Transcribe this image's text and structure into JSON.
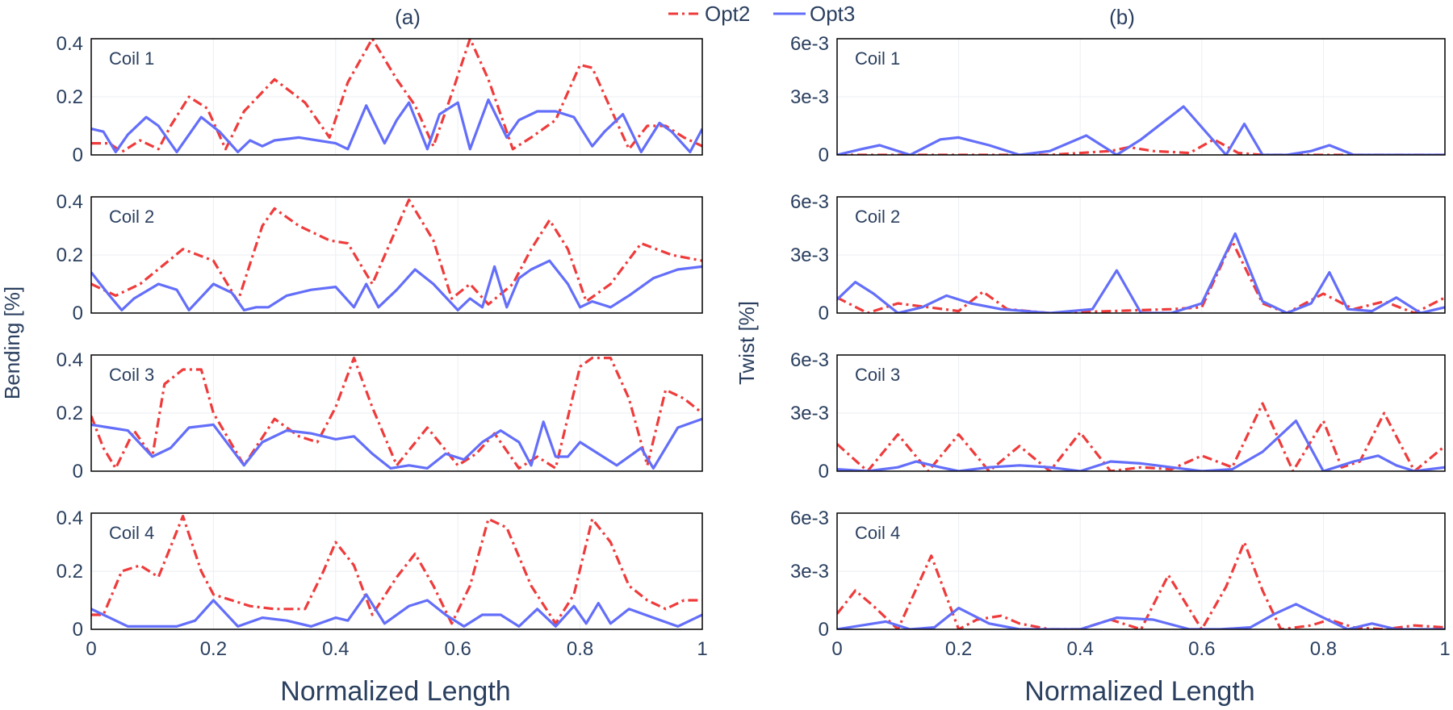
{
  "figure": {
    "legend": {
      "placement": "top-center",
      "items": [
        {
          "name": "Opt2",
          "color": "#ef3b3b",
          "dash": "dash-dot"
        },
        {
          "name": "Opt3",
          "color": "#636efa",
          "dash": "solid"
        }
      ]
    },
    "columns": [
      {
        "panel_label": "(a)",
        "ylabel": "Bending [%]",
        "xlabel": "Normalized Length"
      },
      {
        "panel_label": "(b)",
        "ylabel": "Twist [%]",
        "xlabel": "Normalized Length"
      }
    ],
    "x_ticks": [
      "0",
      "0.2",
      "0.4",
      "0.6",
      "0.8",
      "1"
    ],
    "bending_y_ticks": [
      "0",
      "0.2",
      "0.4"
    ],
    "twist_y_ticks": [
      "0",
      "3e-3",
      "6e-3"
    ]
  },
  "chart_data": [
    {
      "type": "line",
      "title": "Coil 1",
      "column": "Bending",
      "xlim": [
        0,
        1
      ],
      "ylim": [
        0,
        0.4
      ],
      "grid": true,
      "series": [
        {
          "name": "Opt2",
          "x": [
            0,
            0.03,
            0.05,
            0.08,
            0.11,
            0.13,
            0.16,
            0.19,
            0.22,
            0.25,
            0.3,
            0.35,
            0.39,
            0.42,
            0.46,
            0.5,
            0.53,
            0.56,
            0.59,
            0.62,
            0.65,
            0.69,
            0.72,
            0.76,
            0.8,
            0.82,
            0.85,
            0.88,
            0.91,
            0.94,
            0.97,
            1
          ],
          "y": [
            0.04,
            0.04,
            0.01,
            0.05,
            0.02,
            0.1,
            0.2,
            0.16,
            0.02,
            0.15,
            0.26,
            0.18,
            0.06,
            0.25,
            0.4,
            0.26,
            0.17,
            0.03,
            0.21,
            0.4,
            0.26,
            0.02,
            0.06,
            0.12,
            0.31,
            0.3,
            0.16,
            0.02,
            0.1,
            0.1,
            0.06,
            0.03
          ]
        },
        {
          "name": "Opt3",
          "x": [
            0,
            0.02,
            0.04,
            0.06,
            0.09,
            0.11,
            0.14,
            0.18,
            0.21,
            0.24,
            0.26,
            0.28,
            0.3,
            0.34,
            0.4,
            0.42,
            0.45,
            0.48,
            0.5,
            0.52,
            0.55,
            0.57,
            0.6,
            0.62,
            0.65,
            0.68,
            0.7,
            0.73,
            0.76,
            0.79,
            0.82,
            0.84,
            0.87,
            0.9,
            0.93,
            0.95,
            0.98,
            1
          ],
          "y": [
            0.09,
            0.08,
            0.01,
            0.07,
            0.13,
            0.1,
            0.01,
            0.13,
            0.08,
            0.01,
            0.05,
            0.03,
            0.05,
            0.06,
            0.04,
            0.02,
            0.17,
            0.04,
            0.12,
            0.18,
            0.02,
            0.14,
            0.18,
            0.02,
            0.19,
            0.06,
            0.12,
            0.15,
            0.15,
            0.13,
            0.03,
            0.08,
            0.14,
            0.01,
            0.11,
            0.08,
            0.01,
            0.09
          ]
        }
      ]
    },
    {
      "type": "line",
      "title": "Coil 2",
      "column": "Bending",
      "xlim": [
        0,
        1
      ],
      "ylim": [
        0,
        0.4
      ],
      "grid": true,
      "series": [
        {
          "name": "Opt2",
          "x": [
            0,
            0.04,
            0.08,
            0.15,
            0.2,
            0.24,
            0.28,
            0.3,
            0.34,
            0.39,
            0.42,
            0.46,
            0.52,
            0.56,
            0.59,
            0.62,
            0.65,
            0.69,
            0.72,
            0.75,
            0.78,
            0.81,
            0.85,
            0.9,
            0.95,
            1
          ],
          "y": [
            0.1,
            0.06,
            0.1,
            0.22,
            0.18,
            0.04,
            0.3,
            0.36,
            0.3,
            0.25,
            0.24,
            0.1,
            0.39,
            0.25,
            0.05,
            0.1,
            0.03,
            0.1,
            0.22,
            0.32,
            0.22,
            0.04,
            0.1,
            0.24,
            0.2,
            0.18
          ]
        },
        {
          "name": "Opt3",
          "x": [
            0,
            0.03,
            0.05,
            0.07,
            0.11,
            0.14,
            0.16,
            0.2,
            0.23,
            0.25,
            0.27,
            0.29,
            0.32,
            0.36,
            0.4,
            0.43,
            0.45,
            0.47,
            0.5,
            0.53,
            0.56,
            0.6,
            0.62,
            0.64,
            0.66,
            0.68,
            0.7,
            0.72,
            0.75,
            0.78,
            0.8,
            0.82,
            0.85,
            0.88,
            0.92,
            0.96,
            1
          ],
          "y": [
            0.14,
            0.06,
            0.01,
            0.05,
            0.1,
            0.08,
            0.01,
            0.1,
            0.07,
            0.01,
            0.02,
            0.02,
            0.06,
            0.08,
            0.09,
            0.02,
            0.1,
            0.02,
            0.08,
            0.15,
            0.1,
            0.01,
            0.05,
            0.02,
            0.16,
            0.02,
            0.12,
            0.15,
            0.18,
            0.1,
            0.02,
            0.04,
            0.02,
            0.06,
            0.12,
            0.15,
            0.16
          ]
        }
      ]
    },
    {
      "type": "line",
      "title": "Coil 3",
      "column": "Bending",
      "xlim": [
        0,
        1
      ],
      "ylim": [
        0,
        0.4
      ],
      "grid": true,
      "series": [
        {
          "name": "Opt2",
          "x": [
            0,
            0.02,
            0.04,
            0.07,
            0.1,
            0.12,
            0.15,
            0.18,
            0.2,
            0.25,
            0.3,
            0.34,
            0.37,
            0.4,
            0.43,
            0.46,
            0.5,
            0.55,
            0.6,
            0.63,
            0.66,
            0.7,
            0.73,
            0.76,
            0.8,
            0.82,
            0.85,
            0.88,
            0.91,
            0.94,
            0.97,
            1
          ],
          "y": [
            0.19,
            0.08,
            0.01,
            0.14,
            0.05,
            0.3,
            0.35,
            0.35,
            0.2,
            0.02,
            0.18,
            0.12,
            0.1,
            0.22,
            0.39,
            0.22,
            0.02,
            0.15,
            0.02,
            0.06,
            0.13,
            0.01,
            0.05,
            0.01,
            0.36,
            0.39,
            0.39,
            0.25,
            0.02,
            0.28,
            0.25,
            0.2
          ]
        },
        {
          "name": "Opt3",
          "x": [
            0,
            0.03,
            0.06,
            0.1,
            0.13,
            0.16,
            0.2,
            0.25,
            0.28,
            0.32,
            0.36,
            0.4,
            0.43,
            0.46,
            0.49,
            0.52,
            0.55,
            0.58,
            0.61,
            0.64,
            0.67,
            0.7,
            0.72,
            0.74,
            0.76,
            0.78,
            0.8,
            0.83,
            0.86,
            0.9,
            0.92,
            0.96,
            1
          ],
          "y": [
            0.16,
            0.15,
            0.14,
            0.05,
            0.08,
            0.15,
            0.16,
            0.02,
            0.1,
            0.14,
            0.13,
            0.11,
            0.12,
            0.06,
            0.01,
            0.02,
            0.01,
            0.06,
            0.04,
            0.1,
            0.14,
            0.1,
            0.02,
            0.17,
            0.05,
            0.05,
            0.1,
            0.06,
            0.02,
            0.08,
            0.01,
            0.15,
            0.18
          ]
        }
      ]
    },
    {
      "type": "line",
      "title": "Coil 4",
      "column": "Bending",
      "xlim": [
        0,
        1
      ],
      "ylim": [
        0,
        0.4
      ],
      "grid": true,
      "series": [
        {
          "name": "Opt2",
          "x": [
            0,
            0.02,
            0.05,
            0.08,
            0.11,
            0.15,
            0.18,
            0.2,
            0.23,
            0.26,
            0.3,
            0.35,
            0.38,
            0.4,
            0.43,
            0.46,
            0.5,
            0.53,
            0.56,
            0.59,
            0.62,
            0.65,
            0.68,
            0.72,
            0.76,
            0.79,
            0.82,
            0.85,
            0.88,
            0.91,
            0.94,
            0.97,
            1
          ],
          "y": [
            0.05,
            0.05,
            0.2,
            0.22,
            0.18,
            0.39,
            0.2,
            0.12,
            0.1,
            0.08,
            0.07,
            0.07,
            0.2,
            0.3,
            0.22,
            0.05,
            0.18,
            0.26,
            0.15,
            0.02,
            0.15,
            0.38,
            0.35,
            0.15,
            0.02,
            0.12,
            0.38,
            0.3,
            0.15,
            0.1,
            0.07,
            0.1,
            0.1
          ]
        },
        {
          "name": "Opt3",
          "x": [
            0,
            0.03,
            0.06,
            0.1,
            0.14,
            0.17,
            0.2,
            0.24,
            0.28,
            0.32,
            0.36,
            0.4,
            0.42,
            0.45,
            0.48,
            0.52,
            0.55,
            0.58,
            0.61,
            0.64,
            0.67,
            0.7,
            0.73,
            0.76,
            0.79,
            0.81,
            0.83,
            0.85,
            0.88,
            0.92,
            0.96,
            1
          ],
          "y": [
            0.07,
            0.04,
            0.01,
            0.01,
            0.01,
            0.03,
            0.1,
            0.01,
            0.04,
            0.03,
            0.01,
            0.04,
            0.03,
            0.12,
            0.02,
            0.08,
            0.1,
            0.05,
            0.01,
            0.05,
            0.05,
            0.01,
            0.07,
            0.01,
            0.08,
            0.02,
            0.09,
            0.02,
            0.07,
            0.04,
            0.01,
            0.05
          ]
        }
      ]
    },
    {
      "type": "line",
      "title": "Coil 1",
      "column": "Twist",
      "xlim": [
        0,
        1
      ],
      "ylim": [
        0,
        0.006
      ],
      "grid": true,
      "series": [
        {
          "name": "Opt2",
          "x": [
            0,
            0.2,
            0.35,
            0.45,
            0.48,
            0.52,
            0.58,
            0.62,
            0.66,
            0.7,
            0.8,
            1
          ],
          "y": [
            0,
            0,
            0,
            0.0002,
            0.0004,
            0.0002,
            0.0001,
            0.0008,
            0.0001,
            0,
            0,
            0
          ]
        },
        {
          "name": "Opt3",
          "x": [
            0,
            0.04,
            0.07,
            0.12,
            0.17,
            0.2,
            0.25,
            0.3,
            0.35,
            0.41,
            0.46,
            0.5,
            0.57,
            0.64,
            0.67,
            0.7,
            0.74,
            0.78,
            0.81,
            0.85,
            0.9,
            1
          ],
          "y": [
            0,
            0.0003,
            0.0005,
            0,
            0.0008,
            0.0009,
            0.0005,
            0,
            0.0002,
            0.001,
            0,
            0.0008,
            0.0025,
            0,
            0.0016,
            0,
            0,
            0.0002,
            0.0005,
            0,
            0,
            0
          ]
        }
      ]
    },
    {
      "type": "line",
      "title": "Coil 2",
      "column": "Twist",
      "xlim": [
        0,
        1
      ],
      "ylim": [
        0,
        0.006
      ],
      "grid": true,
      "series": [
        {
          "name": "Opt2",
          "x": [
            0,
            0.05,
            0.1,
            0.15,
            0.2,
            0.24,
            0.28,
            0.35,
            0.45,
            0.55,
            0.6,
            0.65,
            0.7,
            0.74,
            0.8,
            0.85,
            0.9,
            0.95,
            1
          ],
          "y": [
            0.0008,
            0,
            0.0005,
            0.0003,
            0.0001,
            0.0011,
            0.0002,
            0,
            0.0001,
            0.0002,
            0.0003,
            0.0037,
            0.0005,
            0,
            0.001,
            0.0002,
            0.0006,
            0,
            0.0008
          ]
        },
        {
          "name": "Opt3",
          "x": [
            0,
            0.03,
            0.06,
            0.1,
            0.14,
            0.18,
            0.22,
            0.27,
            0.35,
            0.42,
            0.46,
            0.5,
            0.55,
            0.6,
            0.655,
            0.7,
            0.74,
            0.78,
            0.81,
            0.84,
            0.88,
            0.92,
            0.96,
            1
          ],
          "y": [
            0.0007,
            0.0016,
            0.001,
            0,
            0.0003,
            0.0009,
            0.0005,
            0.0002,
            0,
            0.0002,
            0.0022,
            0,
            0,
            0.0005,
            0.0041,
            0.0006,
            0,
            0.0005,
            0.0021,
            0.0002,
            0.0001,
            0.0008,
            0,
            0.0003
          ]
        }
      ]
    },
    {
      "type": "line",
      "title": "Coil 3",
      "column": "Twist",
      "xlim": [
        0,
        1
      ],
      "ylim": [
        0,
        0.006
      ],
      "grid": true,
      "series": [
        {
          "name": "Opt2",
          "x": [
            0,
            0.05,
            0.1,
            0.15,
            0.2,
            0.25,
            0.3,
            0.35,
            0.4,
            0.45,
            0.5,
            0.55,
            0.6,
            0.65,
            0.7,
            0.75,
            0.8,
            0.83,
            0.86,
            0.9,
            0.95,
            1
          ],
          "y": [
            0.0014,
            0,
            0.0019,
            0,
            0.0019,
            0,
            0.0013,
            0,
            0.002,
            0,
            0.0002,
            0.0001,
            0.0008,
            0.0002,
            0.0035,
            0,
            0.0026,
            0.0002,
            0.0005,
            0.003,
            0,
            0.0013
          ]
        },
        {
          "name": "Opt3",
          "x": [
            0,
            0.05,
            0.1,
            0.13,
            0.17,
            0.2,
            0.25,
            0.3,
            0.35,
            0.4,
            0.45,
            0.5,
            0.55,
            0.6,
            0.65,
            0.7,
            0.755,
            0.8,
            0.85,
            0.89,
            0.92,
            0.95,
            1
          ],
          "y": [
            0.0001,
            0,
            0.0002,
            0.0005,
            0.0002,
            0,
            0.0002,
            0.0003,
            0.0002,
            0,
            0.0005,
            0.0004,
            0.0002,
            0,
            0.0001,
            0.001,
            0.0026,
            0,
            0.0005,
            0.0008,
            0.0003,
            0,
            0.0002
          ]
        }
      ]
    },
    {
      "type": "line",
      "title": "Coil 4",
      "column": "Twist",
      "xlim": [
        0,
        1
      ],
      "ylim": [
        0,
        0.006
      ],
      "grid": true,
      "series": [
        {
          "name": "Opt2",
          "x": [
            0,
            0.03,
            0.06,
            0.1,
            0.155,
            0.2,
            0.23,
            0.27,
            0.3,
            0.35,
            0.4,
            0.45,
            0.5,
            0.545,
            0.6,
            0.64,
            0.67,
            0.7,
            0.73,
            0.78,
            0.81,
            0.85,
            0.9,
            0.95,
            1
          ],
          "y": [
            0.0008,
            0.002,
            0.0012,
            0,
            0.0038,
            0,
            0.0005,
            0.0007,
            0.0003,
            0,
            0,
            0.0005,
            0,
            0.0028,
            0,
            0.0022,
            0.0045,
            0.002,
            0,
            0.0002,
            0.0005,
            0.0001,
            0,
            0.0002,
            0.0001
          ]
        },
        {
          "name": "Opt3",
          "x": [
            0,
            0.04,
            0.08,
            0.12,
            0.16,
            0.2,
            0.25,
            0.3,
            0.35,
            0.4,
            0.46,
            0.52,
            0.58,
            0.63,
            0.68,
            0.72,
            0.755,
            0.8,
            0.84,
            0.88,
            0.92,
            1
          ],
          "y": [
            0,
            0.0002,
            0.0004,
            0,
            0.0001,
            0.0011,
            0.0003,
            0,
            0,
            0,
            0.0006,
            0.0005,
            0,
            0,
            0.0001,
            0.0008,
            0.0013,
            0.0006,
            0,
            0.0003,
            0,
            0
          ]
        }
      ]
    }
  ]
}
